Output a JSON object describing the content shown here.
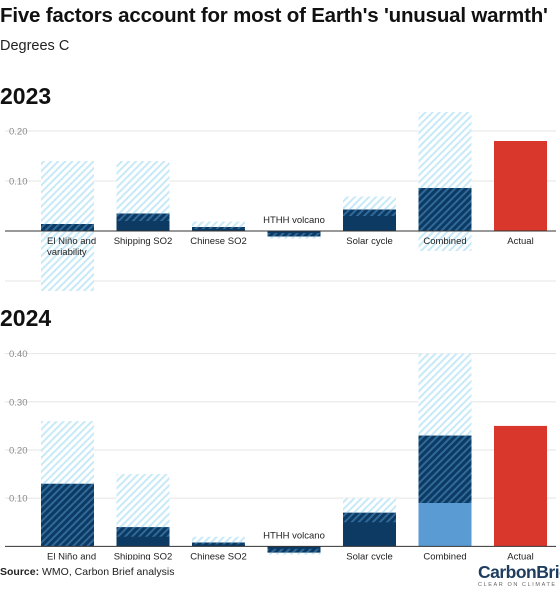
{
  "header": {
    "title": "Five factors account for most of Earth's 'unusual warmth'",
    "subtitle": "Degrees C"
  },
  "footer": {
    "source_label": "Source:",
    "source_text": "WMO, Carbon Brief analysis",
    "logo_text": "CarbonBrief",
    "logo_tagline": "CLEAR ON CLIMATE"
  },
  "colors": {
    "central_dark": "#0d3a62",
    "central_light": "#2f6a9a",
    "range": "#c7e9f8",
    "combined_central": "#5a9bd4",
    "actual": "#d9372b"
  },
  "chart_data": [
    {
      "type": "bar",
      "title": "2023",
      "subtitle": "Degrees C",
      "ylim": [
        -0.12,
        0.22
      ],
      "yticks": [
        0.2,
        0.1,
        0.0,
        -0.1
      ],
      "ytick_labels": [
        "0.20",
        "0.10",
        "",
        ""
      ],
      "grid": true,
      "categories": [
        "El Niño and variability",
        "Shipping SO2",
        "Chinese SO2",
        "HTHH volcano",
        "Solar cycle",
        "Combined",
        "Actual"
      ],
      "label_above_axis": [
        false,
        false,
        false,
        true,
        false,
        false,
        false
      ],
      "bars": [
        {
          "central": 0.014,
          "low": -0.12,
          "high": 0.14
        },
        {
          "central": 0.035,
          "low": 0.02,
          "high": 0.14
        },
        {
          "central": 0.008,
          "low": 0.004,
          "high": 0.019
        },
        {
          "central": -0.011,
          "low": -0.015,
          "high": -0.004
        },
        {
          "central": 0.043,
          "low": 0.03,
          "high": 0.069
        },
        {
          "central": 0.086,
          "low": -0.04,
          "high": 0.25
        },
        {
          "value": 0.18
        }
      ]
    },
    {
      "type": "bar",
      "title": "2024",
      "subtitle": "Degrees C",
      "ylim": [
        -0.02,
        0.42
      ],
      "yticks": [
        0.4,
        0.3,
        0.2,
        0.1,
        0.0
      ],
      "ytick_labels": [
        "0.40",
        "0.30",
        "0.20",
        "0.10",
        ""
      ],
      "grid": true,
      "categories": [
        "El Niño and variability",
        "Shipping SO2",
        "Chinese SO2",
        "HTHH volcano",
        "Solar cycle",
        "Combined",
        "Actual"
      ],
      "label_above_axis": [
        false,
        false,
        false,
        true,
        false,
        false,
        false
      ],
      "bars": [
        {
          "central": 0.13,
          "low": 0.0,
          "high": 0.26
        },
        {
          "central": 0.04,
          "low": 0.02,
          "high": 0.15
        },
        {
          "central": 0.008,
          "low": 0.004,
          "high": 0.02
        },
        {
          "central": -0.013,
          "low": -0.017,
          "high": -0.005
        },
        {
          "central": 0.07,
          "low": 0.05,
          "high": 0.1
        },
        {
          "central": 0.23,
          "low": 0.09,
          "high": 0.4
        },
        {
          "value": 0.25
        }
      ]
    }
  ]
}
